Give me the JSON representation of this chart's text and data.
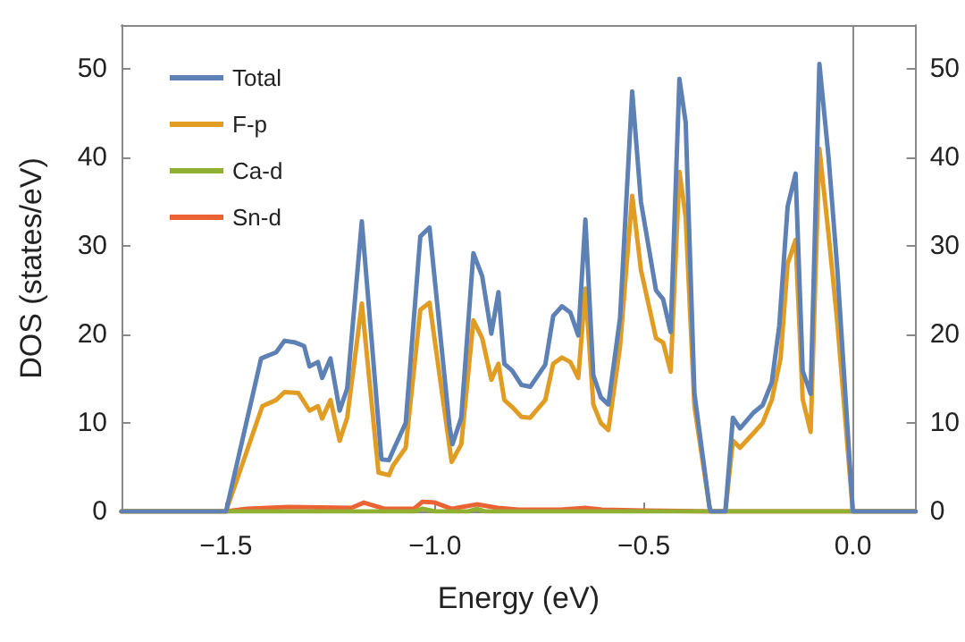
{
  "chart_data": {
    "type": "line",
    "xlabel": "Energy (eV)",
    "ylabel": "DOS (states/eV)",
    "xlim": [
      -1.75,
      0.15
    ],
    "xticks": [
      {
        "value": -1.5,
        "label": "−1.5"
      },
      {
        "value": -1,
        "label": "−1.0"
      },
      {
        "value": -0.5,
        "label": "−0.5"
      },
      {
        "value": 0,
        "label": "0.0"
      }
    ],
    "ylim": [
      0,
      55
    ],
    "yticks": [
      0,
      10,
      20,
      30,
      40,
      50
    ],
    "y2lim": [
      0,
      55
    ],
    "y2ticks": [
      0,
      10,
      20,
      30,
      40,
      50
    ],
    "grid": false,
    "legend": "top left",
    "marker": "none",
    "line_style": "solid",
    "ref_lines": [
      {
        "axis": "x",
        "value": 0,
        "color": "#888888"
      }
    ],
    "series": [
      {
        "name": "Total",
        "color": "#5e81b5",
        "x": [
          -1.75,
          -1.5,
          -1.416,
          -1.38,
          -1.36,
          -1.334,
          -1.313,
          -1.3,
          -1.28,
          -1.27,
          -1.25,
          -1.228,
          -1.21,
          -1.175,
          -1.128,
          -1.11,
          -1.1,
          -1.07,
          -1.035,
          -1.013,
          -0.965,
          -0.958,
          -0.937,
          -0.908,
          -0.887,
          -0.865,
          -0.848,
          -0.834,
          -0.815,
          -0.793,
          -0.772,
          -0.736,
          -0.717,
          -0.696,
          -0.676,
          -0.657,
          -0.64,
          -0.621,
          -0.603,
          -0.585,
          -0.557,
          -0.528,
          -0.507,
          -0.471,
          -0.454,
          -0.436,
          -0.415,
          -0.4,
          -0.379,
          -0.343,
          -0.34,
          -0.305,
          -0.287,
          -0.27,
          -0.237,
          -0.216,
          -0.194,
          -0.176,
          -0.156,
          -0.137,
          -0.12,
          -0.101,
          -0.08,
          -0.058,
          -0.037,
          0,
          0.15
        ],
        "values": [
          0,
          0,
          17.3,
          18,
          19.3,
          19.1,
          18.7,
          16.4,
          16.9,
          15.1,
          17.3,
          11.4,
          13.9,
          32.8,
          5.9,
          5.8,
          6.9,
          10,
          31.1,
          32.1,
          9.6,
          7.6,
          10.6,
          29.2,
          26.6,
          20.1,
          24.8,
          16.7,
          15.9,
          14.3,
          14.1,
          16.6,
          22.1,
          23.2,
          22.5,
          19.9,
          33,
          15.4,
          12.9,
          12.1,
          21.9,
          47.5,
          35,
          25,
          24,
          20.3,
          48.9,
          44,
          13.3,
          0.5,
          0,
          0,
          10.6,
          9.4,
          11.2,
          12,
          14.6,
          21,
          34.5,
          38.2,
          15.9,
          13.3,
          50.6,
          40,
          27.3,
          0,
          0
        ]
      },
      {
        "name": "F-p",
        "color": "#e19c24",
        "x": [
          -1.75,
          -1.5,
          -1.413,
          -1.38,
          -1.36,
          -1.327,
          -1.3,
          -1.28,
          -1.27,
          -1.25,
          -1.228,
          -1.21,
          -1.175,
          -1.135,
          -1.11,
          -1.1,
          -1.07,
          -1.035,
          -1.013,
          -0.96,
          -0.937,
          -0.908,
          -0.887,
          -0.865,
          -0.848,
          -0.834,
          -0.815,
          -0.793,
          -0.772,
          -0.736,
          -0.717,
          -0.696,
          -0.676,
          -0.657,
          -0.64,
          -0.621,
          -0.603,
          -0.585,
          -0.557,
          -0.528,
          -0.507,
          -0.471,
          -0.454,
          -0.436,
          -0.415,
          -0.4,
          -0.379,
          -0.343,
          -0.34,
          -0.305,
          -0.287,
          -0.27,
          -0.237,
          -0.216,
          -0.194,
          -0.173,
          -0.156,
          -0.137,
          -0.12,
          -0.101,
          -0.08,
          -0.058,
          -0.037,
          0,
          0.15
        ],
        "values": [
          0,
          0,
          11.9,
          12.6,
          13.5,
          13.4,
          11.4,
          11.9,
          10.5,
          12.6,
          8,
          10.6,
          23.5,
          4.4,
          4.1,
          5.2,
          7.2,
          22.8,
          23.6,
          5.6,
          7.6,
          21.6,
          19.6,
          14.9,
          16.7,
          12.6,
          11.8,
          10.7,
          10.6,
          12.6,
          16.7,
          17.4,
          16.9,
          15.1,
          25.2,
          12.1,
          10,
          9.2,
          18.7,
          35.7,
          27.3,
          19.6,
          19.1,
          15.8,
          38.4,
          33.3,
          11.9,
          0.5,
          0,
          0,
          8,
          7.2,
          8.9,
          10,
          12.6,
          17.3,
          28,
          30.7,
          12.7,
          9,
          41,
          31.3,
          21.3,
          0,
          0
        ]
      },
      {
        "name": "Ca-d",
        "color": "#8fb032",
        "x": [
          -1.75,
          -1.5,
          -1.05,
          -1.03,
          -1.0,
          -0.92,
          -0.9,
          -0.88,
          -0.3,
          0.15
        ],
        "values": [
          0,
          0,
          0,
          0.3,
          0,
          0,
          0.3,
          0,
          0,
          0
        ]
      },
      {
        "name": "Sn-d",
        "color": "#eb6235",
        "x": [
          -1.75,
          -1.5,
          -1.45,
          -1.35,
          -1.2,
          -1.17,
          -1.12,
          -1.05,
          -1.03,
          -1.0,
          -0.96,
          -0.9,
          -0.85,
          -0.8,
          -0.7,
          -0.64,
          -0.6,
          -0.5,
          -0.35,
          0.15
        ],
        "values": [
          0,
          0,
          0.3,
          0.5,
          0.4,
          1,
          0.3,
          0.3,
          1.1,
          1,
          0.3,
          0.8,
          0.4,
          0.2,
          0.2,
          0.4,
          0.2,
          0.1,
          0,
          0
        ]
      }
    ]
  }
}
